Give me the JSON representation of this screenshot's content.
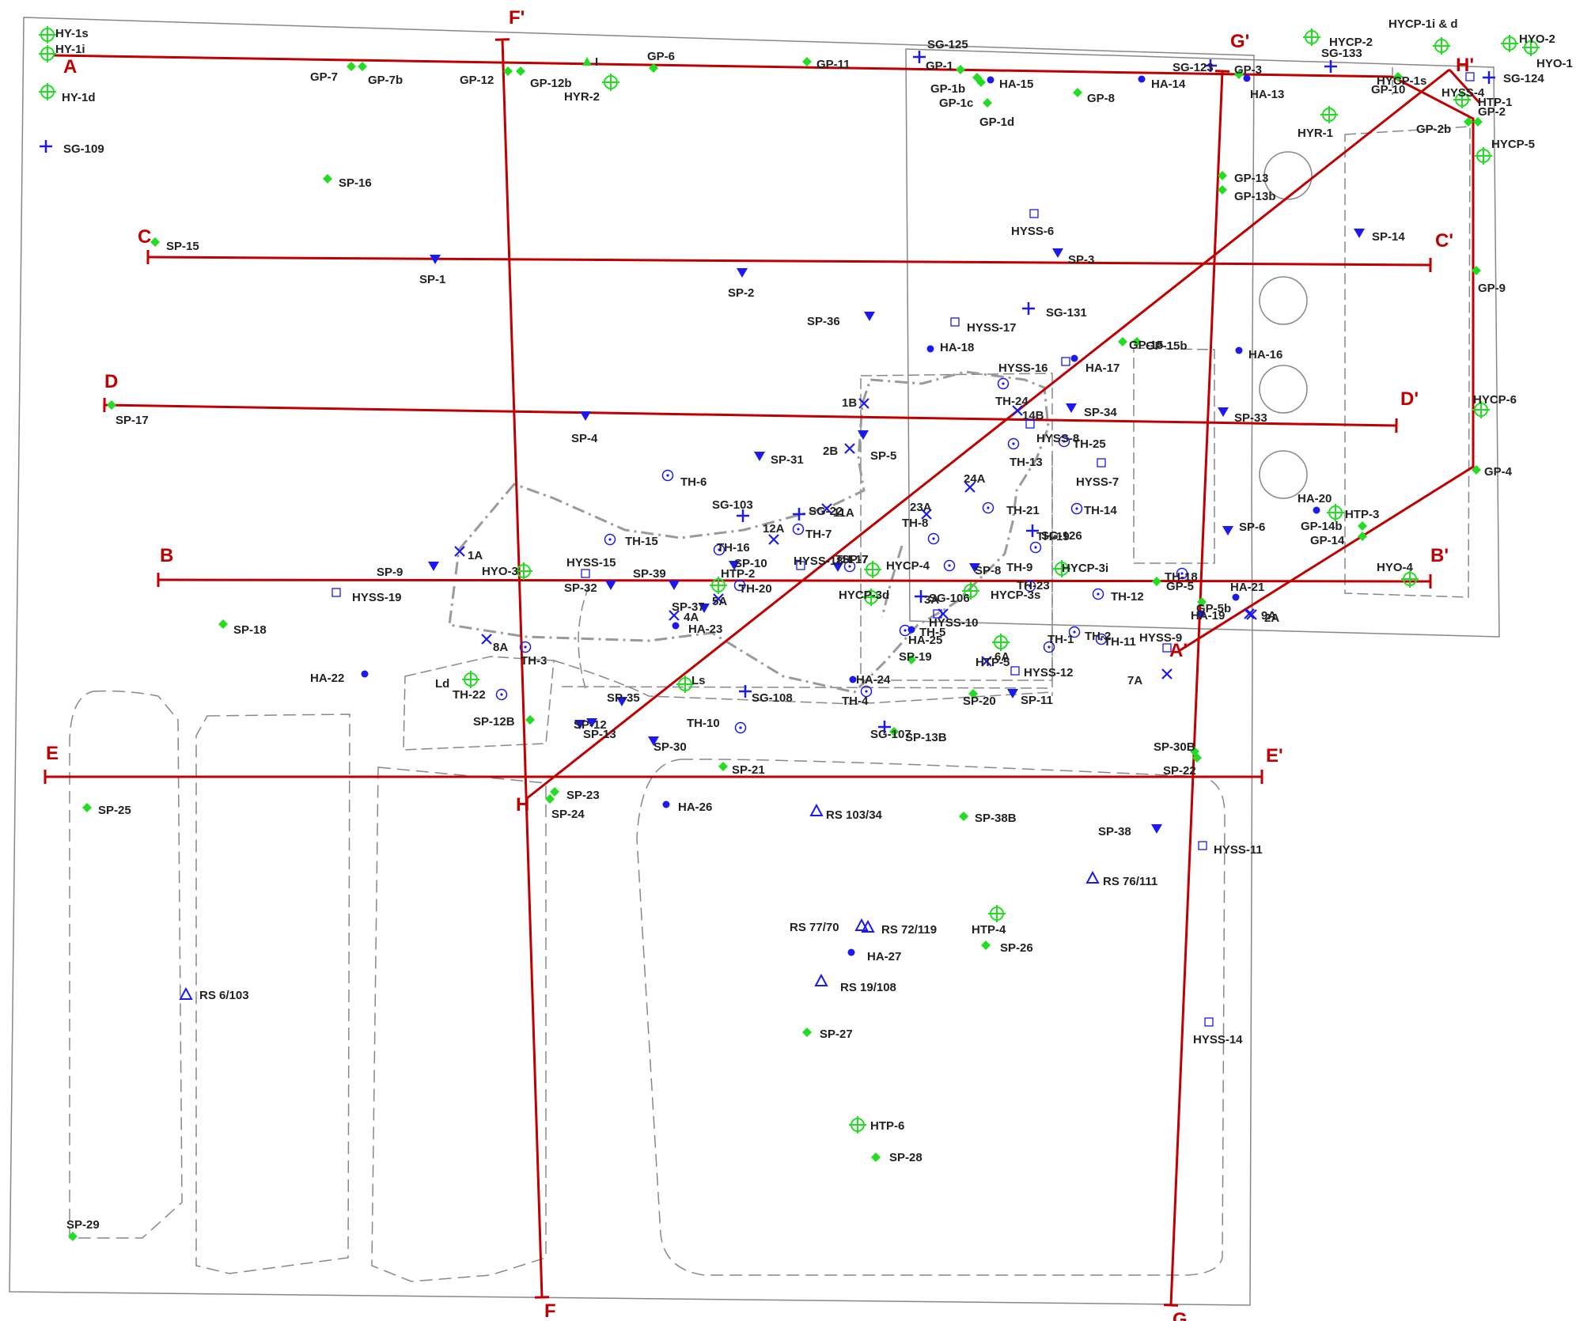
{
  "colors": {
    "section_line": "#c00000",
    "green_marker": "#22dd22",
    "blue_marker": "#1a1aee",
    "boundary": "#888888",
    "plume": "#9a9a9a"
  },
  "legend_symbols": {
    "diamond": "green-diamond-icon",
    "target": "green-crosshair-circle-icon",
    "plus": "blue-plus-icon",
    "tri_down": "blue-down-triangle-icon",
    "dot": "blue-dot-icon",
    "square": "blue-open-square-icon",
    "circdot": "blue-circle-dot-icon",
    "cross": "blue-x-icon",
    "tri_up": "blue-open-triangle-icon"
  },
  "cross_sections": [
    {
      "start": "A",
      "end": "A'"
    },
    {
      "start": "B",
      "end": "B'"
    },
    {
      "start": "C",
      "end": "C'"
    },
    {
      "start": "D",
      "end": "D'"
    },
    {
      "start": "E",
      "end": "E'"
    },
    {
      "start": "F",
      "end": "F'"
    },
    {
      "start": "G",
      "end": "G'"
    },
    {
      "start": "H",
      "end": "H'"
    }
  ],
  "sample_points": [
    {
      "id": "HY-1s",
      "type": "target"
    },
    {
      "id": "HY-1i",
      "type": "target"
    },
    {
      "id": "HY-1d",
      "type": "target"
    },
    {
      "id": "SG-109",
      "type": "plus"
    },
    {
      "id": "GP-7",
      "type": "diamond"
    },
    {
      "id": "GP-7b",
      "type": "diamond"
    },
    {
      "id": "GP-12",
      "type": "diamond"
    },
    {
      "id": "GP-12b",
      "type": "diamond"
    },
    {
      "id": "I",
      "type": "tri_up_green"
    },
    {
      "id": "GP-6",
      "type": "diamond"
    },
    {
      "id": "HYR-2",
      "type": "target"
    },
    {
      "id": "GP-11",
      "type": "diamond"
    },
    {
      "id": "SG-125",
      "type": "plus"
    },
    {
      "id": "GP-1",
      "type": "diamond"
    },
    {
      "id": "GP-1b",
      "type": "diamond"
    },
    {
      "id": "GP-1c",
      "type": "diamond"
    },
    {
      "id": "GP-1d",
      "type": "diamond"
    },
    {
      "id": "HA-15",
      "type": "dot"
    },
    {
      "id": "GP-8",
      "type": "diamond"
    },
    {
      "id": "HA-14",
      "type": "dot"
    },
    {
      "id": "SG-123",
      "type": "plus"
    },
    {
      "id": "GP-3",
      "type": "diamond"
    },
    {
      "id": "HA-13",
      "type": "dot"
    },
    {
      "id": "HYCP-2",
      "type": "target"
    },
    {
      "id": "SG-133",
      "type": "plus"
    },
    {
      "id": "HYCP-1i & d",
      "type": "none"
    },
    {
      "id": "HYCP-1s",
      "type": "target"
    },
    {
      "id": "HYO-2",
      "type": "target"
    },
    {
      "id": "HYO-1",
      "type": "target"
    },
    {
      "id": "SG-124",
      "type": "plus"
    },
    {
      "id": "GP-10",
      "type": "diamond"
    },
    {
      "id": "HYSS-4",
      "type": "square"
    },
    {
      "id": "HTP-1",
      "type": "target"
    },
    {
      "id": "GP-2",
      "type": "diamond"
    },
    {
      "id": "GP-2b",
      "type": "diamond"
    },
    {
      "id": "HYR-1",
      "type": "target"
    },
    {
      "id": "HYCP-5",
      "type": "target"
    },
    {
      "id": "SP-16",
      "type": "diamond"
    },
    {
      "id": "GP-13",
      "type": "diamond"
    },
    {
      "id": "GP-13b",
      "type": "diamond"
    },
    {
      "id": "HYSS-6",
      "type": "square"
    },
    {
      "id": "SP-14",
      "type": "tri_down"
    },
    {
      "id": "SP-15",
      "type": "diamond"
    },
    {
      "id": "SP-1",
      "type": "tri_down"
    },
    {
      "id": "SP-2",
      "type": "tri_down"
    },
    {
      "id": "SP-3",
      "type": "tri_down"
    },
    {
      "id": "GP-9",
      "type": "diamond"
    },
    {
      "id": "SP-36",
      "type": "tri_down"
    },
    {
      "id": "SG-131",
      "type": "plus"
    },
    {
      "id": "HYSS-17",
      "type": "square"
    },
    {
      "id": "GP-15",
      "type": "diamond"
    },
    {
      "id": "GP-15b",
      "type": "diamond"
    },
    {
      "id": "HA-18",
      "type": "dot"
    },
    {
      "id": "HA-17",
      "type": "dot"
    },
    {
      "id": "HYSS-16",
      "type": "square"
    },
    {
      "id": "HA-16",
      "type": "dot"
    },
    {
      "id": "HYCP-6",
      "type": "target"
    },
    {
      "id": "SP-17",
      "type": "diamond"
    },
    {
      "id": "SP-4",
      "type": "tri_down"
    },
    {
      "id": "1B",
      "type": "cross"
    },
    {
      "id": "TH-24",
      "type": "circdot"
    },
    {
      "id": "14B",
      "type": "cross"
    },
    {
      "id": "SP-34",
      "type": "tri_down"
    },
    {
      "id": "HYSS-8",
      "type": "square"
    },
    {
      "id": "SP-33",
      "type": "tri_down"
    },
    {
      "id": "2B",
      "type": "cross"
    },
    {
      "id": "SP-5",
      "type": "tri_down"
    },
    {
      "id": "TH-13",
      "type": "circdot"
    },
    {
      "id": "TH-25",
      "type": "circdot"
    },
    {
      "id": "SP-31",
      "type": "tri_down"
    },
    {
      "id": "HYSS-7",
      "type": "square"
    },
    {
      "id": "TH-6",
      "type": "circdot"
    },
    {
      "id": "24A",
      "type": "cross"
    },
    {
      "id": "GP-4",
      "type": "diamond"
    },
    {
      "id": "SG-103",
      "type": "plus"
    },
    {
      "id": "SG-22",
      "type": "plus"
    },
    {
      "id": "11A",
      "type": "cross"
    },
    {
      "id": "23A",
      "type": "cross"
    },
    {
      "id": "TH-21",
      "type": "circdot"
    },
    {
      "id": "TH-14",
      "type": "circdot"
    },
    {
      "id": "HA-20",
      "type": "dot"
    },
    {
      "id": "HTP-3",
      "type": "target"
    },
    {
      "id": "GP-14b",
      "type": "diamond"
    },
    {
      "id": "GP-14",
      "type": "diamond"
    },
    {
      "id": "12A",
      "type": "cross"
    },
    {
      "id": "TH-7",
      "type": "circdot"
    },
    {
      "id": "SP-6",
      "type": "tri_down"
    },
    {
      "id": "TH-15",
      "type": "circdot"
    },
    {
      "id": "TH-8",
      "type": "circdot"
    },
    {
      "id": "SG-126",
      "type": "plus"
    },
    {
      "id": "1A",
      "type": "cross"
    },
    {
      "id": "TH-16",
      "type": "circdot"
    },
    {
      "id": "HYSS-18",
      "type": "square"
    },
    {
      "id": "TH-17",
      "type": "circdot"
    },
    {
      "id": "TH-19",
      "type": "circdot"
    },
    {
      "id": "SP-7",
      "type": "tri_down"
    },
    {
      "id": "SP-8",
      "type": "tri_down"
    },
    {
      "id": "SP-9",
      "type": "tri_down"
    },
    {
      "id": "HYSS-15",
      "type": "square"
    },
    {
      "id": "SP-10",
      "type": "tri_down"
    },
    {
      "id": "TH-9",
      "type": "circdot"
    },
    {
      "id": "HYCP-3i",
      "type": "target"
    },
    {
      "id": "HYO-3",
      "type": "target"
    },
    {
      "id": "SP-39",
      "type": "tri_down"
    },
    {
      "id": "HTP-2",
      "type": "target"
    },
    {
      "id": "TH-18",
      "type": "circdot"
    },
    {
      "id": "HYO-4",
      "type": "target"
    },
    {
      "id": "SP-32",
      "type": "tri_down"
    },
    {
      "id": "TH-20",
      "type": "circdot"
    },
    {
      "id": "HYCP-4",
      "type": "target"
    },
    {
      "id": "HYCP-3s",
      "type": "target"
    },
    {
      "id": "TH-23",
      "type": "circdot"
    },
    {
      "id": "TH-12",
      "type": "circdot"
    },
    {
      "id": "HA-21",
      "type": "dot"
    },
    {
      "id": "HYSS-19",
      "type": "square"
    },
    {
      "id": "GP-5b",
      "type": "diamond"
    },
    {
      "id": "GP-5",
      "type": "diamond"
    },
    {
      "id": "HYCP-3d",
      "type": "target"
    },
    {
      "id": "SG-106",
      "type": "plus"
    },
    {
      "id": "SP-18",
      "type": "diamond"
    },
    {
      "id": "9A",
      "type": "cross"
    },
    {
      "id": "HA-19",
      "type": "dot"
    },
    {
      "id": "2A",
      "type": "cross"
    },
    {
      "id": "3A",
      "type": "cross"
    },
    {
      "id": "4A",
      "type": "cross"
    },
    {
      "id": "5A",
      "type": "cross"
    },
    {
      "id": "SP-37",
      "type": "tri_down"
    },
    {
      "id": "HA-23",
      "type": "dot"
    },
    {
      "id": "HYSS-10",
      "type": "square"
    },
    {
      "id": "TH-5",
      "type": "circdot"
    },
    {
      "id": "HYSS-9",
      "type": "square"
    },
    {
      "id": "HA-25",
      "type": "dot"
    },
    {
      "id": "TH-2",
      "type": "circdot"
    },
    {
      "id": "TH-1",
      "type": "circdot"
    },
    {
      "id": "TH-11",
      "type": "circdot"
    },
    {
      "id": "HTP-5",
      "type": "target"
    },
    {
      "id": "8A",
      "type": "cross"
    },
    {
      "id": "SP-19",
      "type": "diamond"
    },
    {
      "id": "6A",
      "type": "cross"
    },
    {
      "id": "TH-3",
      "type": "circdot"
    },
    {
      "id": "HA-22",
      "type": "dot"
    },
    {
      "id": "HYSS-12",
      "type": "square"
    },
    {
      "id": "HA-24",
      "type": "dot"
    },
    {
      "id": "7A",
      "type": "cross"
    },
    {
      "id": "Ld",
      "type": "target"
    },
    {
      "id": "Ls",
      "type": "target"
    },
    {
      "id": "TH-22",
      "type": "circdot"
    },
    {
      "id": "TH-4",
      "type": "circdot"
    },
    {
      "id": "SP-20",
      "type": "diamond"
    },
    {
      "id": "SP-11",
      "type": "tri_down"
    },
    {
      "id": "SP-35",
      "type": "tri_down"
    },
    {
      "id": "SG-108",
      "type": "plus"
    },
    {
      "id": "SP-12B",
      "type": "diamond"
    },
    {
      "id": "SP-12",
      "type": "tri_down"
    },
    {
      "id": "TH-10",
      "type": "circdot"
    },
    {
      "id": "SP-13",
      "type": "tri_down"
    },
    {
      "id": "SG-107",
      "type": "plus"
    },
    {
      "id": "SP-13B",
      "type": "diamond"
    },
    {
      "id": "SP-30",
      "type": "tri_down"
    },
    {
      "id": "SP-30B",
      "type": "diamond"
    },
    {
      "id": "SP-21",
      "type": "diamond"
    },
    {
      "id": "SP-22",
      "type": "diamond"
    },
    {
      "id": "SP-23",
      "type": "diamond"
    },
    {
      "id": "SP-24",
      "type": "diamond"
    },
    {
      "id": "SP-25",
      "type": "diamond"
    },
    {
      "id": "HA-26",
      "type": "dot"
    },
    {
      "id": "RS 103/34",
      "type": "tri_up"
    },
    {
      "id": "SP-38B",
      "type": "diamond"
    },
    {
      "id": "SP-38",
      "type": "tri_down"
    },
    {
      "id": "HYSS-11",
      "type": "square"
    },
    {
      "id": "RS 76/111",
      "type": "tri_up"
    },
    {
      "id": "RS 77/70",
      "type": "tri_up"
    },
    {
      "id": "RS 72/119",
      "type": "tri_up"
    },
    {
      "id": "HTP-4",
      "type": "target"
    },
    {
      "id": "HA-27",
      "type": "dot"
    },
    {
      "id": "SP-26",
      "type": "diamond"
    },
    {
      "id": "RS 19/108",
      "type": "tri_up"
    },
    {
      "id": "RS 6/103",
      "type": "tri_up"
    },
    {
      "id": "SP-27",
      "type": "diamond"
    },
    {
      "id": "HYSS-14",
      "type": "square"
    },
    {
      "id": "HTP-6",
      "type": "target"
    },
    {
      "id": "SP-28",
      "type": "diamond"
    },
    {
      "id": "SP-29",
      "type": "diamond"
    }
  ]
}
